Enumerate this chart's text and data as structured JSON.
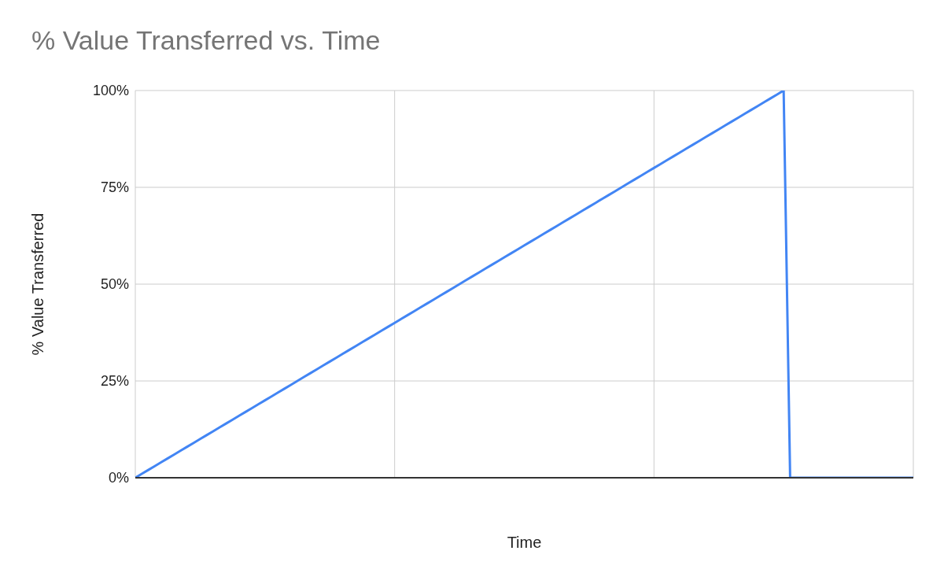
{
  "chart_data": {
    "type": "line",
    "title": "% Value Transferred vs. Time",
    "xlabel": "Time",
    "ylabel": "% Value Transferred",
    "categories": [
      null,
      null,
      null,
      null,
      null,
      null,
      null,
      null,
      null,
      null,
      null,
      null,
      null,
      null,
      null,
      null,
      null,
      null,
      null,
      null,
      null,
      null,
      null,
      null,
      null,
      null,
      null,
      null,
      null,
      null,
      null,
      null,
      null,
      null,
      null,
      null,
      null,
      null,
      null,
      null,
      null,
      null,
      null,
      null,
      null,
      null,
      null,
      null,
      null,
      null,
      null,
      null,
      null,
      null,
      null,
      null,
      null,
      null,
      null,
      null,
      null,
      null,
      null,
      null,
      null,
      null,
      null,
      null,
      null,
      null,
      null,
      null,
      null,
      null,
      null,
      null,
      null,
      null,
      null,
      null,
      null,
      null,
      null,
      null,
      null,
      null,
      null,
      null,
      null,
      null,
      null,
      null,
      null,
      null,
      null,
      null,
      null,
      null,
      null,
      null,
      null,
      null,
      null,
      null,
      null,
      null,
      null,
      null,
      null,
      null,
      null,
      null,
      null,
      null,
      null,
      null,
      null,
      null,
      null,
      null,
      null
    ],
    "series": [
      {
        "color": "#4285f4",
        "values": [
          0,
          1,
          2,
          3,
          4,
          5,
          6,
          7,
          8,
          9,
          10,
          11,
          12,
          13,
          14,
          15,
          16,
          17,
          18,
          19,
          20,
          21,
          22,
          23,
          24,
          25,
          26,
          27,
          28,
          29,
          30,
          31,
          32,
          33,
          34,
          35,
          36,
          37,
          38,
          39,
          40,
          41,
          42,
          43,
          44,
          45,
          46,
          47,
          48,
          49,
          50,
          51,
          52,
          53,
          54,
          55,
          56,
          57,
          58,
          59,
          60,
          61,
          62,
          63,
          64,
          65,
          66,
          67,
          68,
          69,
          70,
          71,
          72,
          73,
          74,
          75,
          76,
          77,
          78,
          79,
          80,
          81,
          82,
          83,
          84,
          85,
          86,
          87,
          88,
          89,
          90,
          91,
          92,
          93,
          94,
          95,
          96,
          97,
          98,
          99,
          100,
          0,
          0,
          0,
          0,
          0,
          0,
          0,
          0,
          0,
          0,
          0,
          0,
          0,
          0,
          0,
          0,
          0,
          0,
          0,
          0
        ]
      }
    ],
    "ylim": [
      0,
      100
    ],
    "yticks": [
      {
        "value": 0,
        "label": "0%"
      },
      {
        "value": 25,
        "label": "25%"
      },
      {
        "value": 50,
        "label": "50%"
      },
      {
        "value": 75,
        "label": "75%"
      },
      {
        "value": 100,
        "label": "100%"
      }
    ],
    "grid": true,
    "marker": "none",
    "line_style": "solid"
  }
}
